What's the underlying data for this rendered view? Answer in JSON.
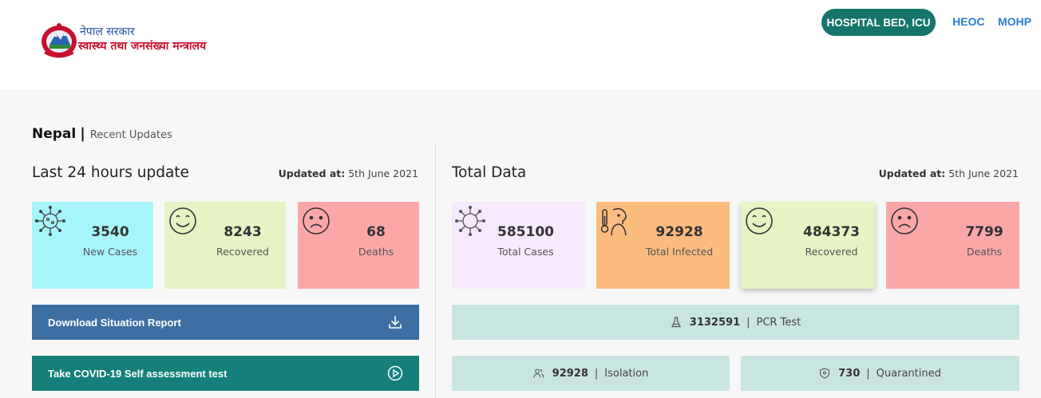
{
  "header": {
    "logo_line1": "नेपाल सरकार",
    "logo_line2": "स्वास्थ्य तथा जनसंख्या मन्त्रालय",
    "nav_pill": "HOSPITAL BED, ICU",
    "nav_links": [
      "HEOC",
      "MOHP"
    ]
  },
  "breadcrumb": {
    "country": "Nepal",
    "separator": "|",
    "subtitle": "Recent Updates"
  },
  "last24": {
    "title": "Last 24 hours update",
    "updated_label": "Updated at:",
    "updated_value": "5th June 2021",
    "cards": [
      {
        "value": "3540",
        "label": "New Cases",
        "color": "#a6f5fb",
        "icon": "virus-icon"
      },
      {
        "value": "8243",
        "label": "Recovered",
        "color": "#e6f3c5",
        "icon": "smile-icon"
      },
      {
        "value": "68",
        "label": "Deaths",
        "color": "#fba7a8",
        "icon": "sad-icon"
      }
    ]
  },
  "total": {
    "title": "Total Data",
    "updated_label": "Updated at:",
    "updated_value": "5th June 2021",
    "cards": [
      {
        "value": "585100",
        "label": "Total Cases",
        "color": "#f6e9fb",
        "icon": "virus-icon"
      },
      {
        "value": "92928",
        "label": "Total Infected",
        "color": "#fcbb7f",
        "icon": "thermometer-patient-icon"
      },
      {
        "value": "484373",
        "label": "Recovered",
        "color": "#e6f3c5",
        "icon": "smile-icon"
      },
      {
        "value": "7799",
        "label": "Deaths",
        "color": "#fba7a8",
        "icon": "sad-icon"
      }
    ]
  },
  "actions": {
    "download_label": "Download Situation Report",
    "download_color": "#3e6fa3",
    "download_icon": "download-icon",
    "selftest_label": "Take COVID-19 Self assessment test",
    "selftest_color": "#15807a",
    "selftest_icon": "play-circle-icon"
  },
  "stats": {
    "pcr_value": "3132591",
    "pcr_label": "PCR Test",
    "isolation_value": "92928",
    "isolation_label": "Isolation",
    "quarantine_value": "730",
    "quarantine_label": "Quarantined",
    "separator": "|"
  }
}
